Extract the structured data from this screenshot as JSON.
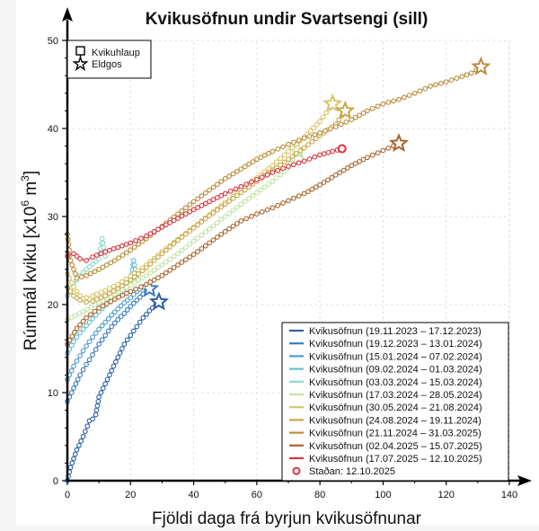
{
  "chart_data": {
    "type": "line",
    "title": "Kvikusöfnun undir Svartsengi (sill)",
    "xlabel": "Fjöldi daga frá byrjun kvikusöfnunar",
    "ylabel_main": "Rúmmál kviku [x10",
    "ylabel_sup": "6",
    "ylabel_unit": " m",
    "ylabel_sup2": "3",
    "ylabel_end": "]",
    "xlim": [
      0,
      140
    ],
    "ylim": [
      0,
      50
    ],
    "xticks": [
      "0",
      "20",
      "40",
      "60",
      "80",
      "100",
      "120",
      "140"
    ],
    "yticks": [
      "0",
      "10",
      "20",
      "30",
      "40",
      "50"
    ],
    "grid": true,
    "marker_legend": [
      {
        "symbol": "square",
        "label": "Kvikuhlaup"
      },
      {
        "symbol": "star",
        "label": "Eldgos"
      }
    ],
    "legend_position": "bottom-right",
    "series": [
      {
        "name": "Kvikusöfnun (19.11.2023 – 17.12.2023)",
        "color": "#2a5fa8",
        "end": "star",
        "points": [
          [
            0,
            0
          ],
          [
            1,
            1.5
          ],
          [
            3,
            3.5
          ],
          [
            5,
            5
          ],
          [
            7,
            6.8
          ],
          [
            8,
            7
          ],
          [
            9,
            7.5
          ],
          [
            10,
            9.5
          ],
          [
            12,
            11
          ],
          [
            14,
            12.5
          ],
          [
            16,
            14
          ],
          [
            18,
            15.5
          ],
          [
            20,
            16.5
          ],
          [
            22,
            17.5
          ],
          [
            24,
            18.5
          ],
          [
            26,
            19.3
          ],
          [
            29,
            20.3
          ]
        ]
      },
      {
        "name": "Kvikusöfnun (19.12.2023 – 13.01.2024)",
        "color": "#3a7bbf",
        "end": "star",
        "points": [
          [
            0,
            9
          ],
          [
            2,
            10.5
          ],
          [
            4,
            12
          ],
          [
            6,
            13.2
          ],
          [
            8,
            14.3
          ],
          [
            10,
            15.5
          ],
          [
            12,
            16.5
          ],
          [
            14,
            17.5
          ],
          [
            16,
            18.3
          ],
          [
            18,
            19
          ],
          [
            20,
            19.8
          ],
          [
            22,
            20.5
          ],
          [
            24,
            21.2
          ],
          [
            26,
            21.8
          ]
        ]
      },
      {
        "name": "Kvikusöfnun (15.01.2024 – 07.02.2024)",
        "color": "#4b9ccf",
        "end": "none",
        "points": [
          [
            0,
            11.5
          ],
          [
            2,
            13
          ],
          [
            4,
            14.2
          ],
          [
            6,
            15.3
          ],
          [
            8,
            16.3
          ],
          [
            10,
            17.2
          ],
          [
            12,
            18
          ],
          [
            14,
            18.8
          ],
          [
            16,
            19.5
          ],
          [
            18,
            20.2
          ],
          [
            20,
            20.8
          ],
          [
            22,
            21.5
          ],
          [
            24,
            22
          ]
        ]
      },
      {
        "name": "Kvikusöfnun (09.02.2024 – 01.03.2024)",
        "color": "#62c0d4",
        "end": "none",
        "points": [
          [
            0,
            14.5
          ],
          [
            2,
            15.8
          ],
          [
            4,
            16.8
          ],
          [
            6,
            17.6
          ],
          [
            8,
            18.4
          ],
          [
            10,
            19.2
          ],
          [
            12,
            19.9
          ],
          [
            14,
            20.6
          ],
          [
            16,
            21.2
          ],
          [
            18,
            21.8
          ],
          [
            20,
            22.4
          ],
          [
            21,
            25
          ],
          [
            22,
            23
          ]
        ]
      },
      {
        "name": "Kvikusöfnun (03.03.2024 – 15.03.2024)",
        "color": "#8fd8cc",
        "end": "none",
        "points": [
          [
            0,
            21
          ],
          [
            2,
            22.3
          ],
          [
            4,
            23.3
          ],
          [
            6,
            24
          ],
          [
            8,
            24.6
          ],
          [
            10,
            25.2
          ],
          [
            11,
            27.5
          ],
          [
            12,
            25.5
          ]
        ]
      },
      {
        "name": "Kvikusöfnun (17.03.2024 – 28.05.2024)",
        "color": "#c2e3a4",
        "end": "star",
        "points": [
          [
            0,
            18.3
          ],
          [
            5,
            19.2
          ],
          [
            10,
            20.2
          ],
          [
            15,
            21.2
          ],
          [
            20,
            22.2
          ],
          [
            25,
            23.3
          ],
          [
            30,
            24.5
          ],
          [
            35,
            25.8
          ],
          [
            40,
            27.2
          ],
          [
            45,
            28.6
          ],
          [
            50,
            30
          ],
          [
            55,
            31.4
          ],
          [
            60,
            32.7
          ],
          [
            65,
            34
          ],
          [
            70,
            35.5
          ],
          [
            73,
            37.5
          ]
        ]
      },
      {
        "name": "Kvikusöfnun (30.05.2024 – 21.08.2024)",
        "color": "#d8c56a",
        "end": "star",
        "points": [
          [
            0,
            23.5
          ],
          [
            2,
            22
          ],
          [
            4,
            21
          ],
          [
            6,
            20.8
          ],
          [
            8,
            21
          ],
          [
            12,
            21.6
          ],
          [
            16,
            22.3
          ],
          [
            20,
            23.2
          ],
          [
            25,
            24.5
          ],
          [
            30,
            26
          ],
          [
            35,
            27.4
          ],
          [
            40,
            28.8
          ],
          [
            45,
            30.2
          ],
          [
            50,
            31.6
          ],
          [
            55,
            33
          ],
          [
            60,
            34.4
          ],
          [
            65,
            35.8
          ],
          [
            70,
            37.4
          ],
          [
            75,
            39
          ],
          [
            80,
            40.8
          ],
          [
            84,
            42.8
          ]
        ]
      },
      {
        "name": "Kvikusöfnun (24.08.2024 – 19.11.2024)",
        "color": "#c9a648",
        "end": "star",
        "points": [
          [
            0,
            22
          ],
          [
            2,
            21
          ],
          [
            4,
            20.5
          ],
          [
            6,
            20.3
          ],
          [
            8,
            20.4
          ],
          [
            12,
            21
          ],
          [
            16,
            21.8
          ],
          [
            20,
            22.8
          ],
          [
            25,
            24.2
          ],
          [
            30,
            25.8
          ],
          [
            35,
            27.3
          ],
          [
            40,
            28.7
          ],
          [
            45,
            30.1
          ],
          [
            50,
            31.4
          ],
          [
            55,
            32.7
          ],
          [
            60,
            34
          ],
          [
            65,
            35.2
          ],
          [
            70,
            36.5
          ],
          [
            75,
            37.8
          ],
          [
            80,
            39.2
          ],
          [
            85,
            40.5
          ],
          [
            88,
            42
          ]
        ]
      },
      {
        "name": "Kvikusöfnun (21.11.2024 – 31.03.2025)",
        "color": "#b98d3a",
        "end": "star",
        "points": [
          [
            0,
            28
          ],
          [
            1,
            25
          ],
          [
            3,
            23
          ],
          [
            6,
            23.3
          ],
          [
            10,
            24
          ],
          [
            15,
            25
          ],
          [
            20,
            26.2
          ],
          [
            25,
            27.5
          ],
          [
            30,
            28.9
          ],
          [
            35,
            30.3
          ],
          [
            40,
            31.7
          ],
          [
            45,
            33
          ],
          [
            50,
            34.3
          ],
          [
            55,
            35.4
          ],
          [
            60,
            36.5
          ],
          [
            65,
            37.4
          ],
          [
            70,
            38.2
          ],
          [
            75,
            38.9
          ],
          [
            80,
            39.5
          ],
          [
            85,
            40.2
          ],
          [
            90,
            41
          ],
          [
            95,
            42
          ],
          [
            100,
            42.8
          ],
          [
            105,
            43.3
          ],
          [
            110,
            44
          ],
          [
            115,
            44.8
          ],
          [
            120,
            45.3
          ],
          [
            125,
            45.9
          ],
          [
            128,
            46.3
          ],
          [
            131,
            47
          ]
        ]
      },
      {
        "name": "Kvikusöfnun (02.04.2025 – 15.07.2025)",
        "color": "#a9652d",
        "end": "star",
        "points": [
          [
            0,
            15.5
          ],
          [
            3,
            17.3
          ],
          [
            6,
            18.5
          ],
          [
            10,
            19.6
          ],
          [
            15,
            20.6
          ],
          [
            20,
            21.5
          ],
          [
            25,
            22.3
          ],
          [
            30,
            23.3
          ],
          [
            35,
            24.5
          ],
          [
            40,
            25.7
          ],
          [
            45,
            27
          ],
          [
            50,
            28.3
          ],
          [
            55,
            29.5
          ],
          [
            60,
            30.3
          ],
          [
            65,
            31
          ],
          [
            70,
            31.8
          ],
          [
            75,
            32.6
          ],
          [
            80,
            33.6
          ],
          [
            85,
            34.7
          ],
          [
            90,
            35.8
          ],
          [
            95,
            36.7
          ],
          [
            100,
            37.5
          ],
          [
            105,
            38.3
          ]
        ]
      },
      {
        "name": "Kvikusöfnun (17.07.2025 – 12.10.2025)",
        "color": "#d8333f",
        "end": "circle",
        "points": [
          [
            0,
            25.5
          ],
          [
            2,
            25.8
          ],
          [
            4,
            25.2
          ],
          [
            6,
            25
          ],
          [
            8,
            25.4
          ],
          [
            12,
            26
          ],
          [
            16,
            26.5
          ],
          [
            20,
            27
          ],
          [
            25,
            27.8
          ],
          [
            30,
            28.8
          ],
          [
            35,
            29.8
          ],
          [
            40,
            30.8
          ],
          [
            45,
            31.7
          ],
          [
            50,
            32.6
          ],
          [
            55,
            33.4
          ],
          [
            60,
            34.2
          ],
          [
            65,
            35
          ],
          [
            70,
            35.7
          ],
          [
            75,
            36.3
          ],
          [
            80,
            37
          ],
          [
            84,
            37.4
          ],
          [
            87,
            37.7
          ]
        ]
      }
    ],
    "status_label": "Staðan: 12.10.2025",
    "status_color": "#d8333f"
  }
}
